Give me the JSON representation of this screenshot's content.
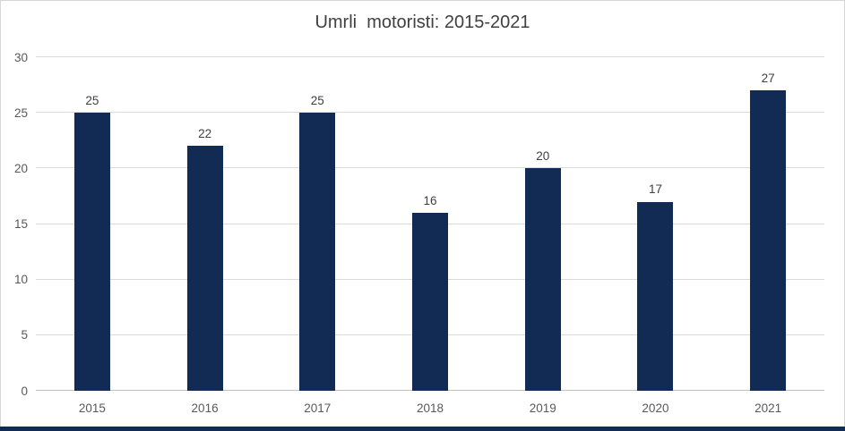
{
  "title": "Umrli  motoristi: 2015-2021",
  "colors": {
    "bar": "#112B54",
    "title_text": "#404040",
    "data_label_text": "#404040",
    "axis_label_text": "#595959",
    "gridline": "#D9D9D9",
    "axis_line": "#BFBFBF",
    "frame_border": "#D6D6D6",
    "bottom_strip": "#112B54",
    "background": "#FFFFFF"
  },
  "chart_data": {
    "type": "bar",
    "title": "Umrli  motoristi: 2015-2021",
    "categories": [
      "2015",
      "2016",
      "2017",
      "2018",
      "2019",
      "2020",
      "2021"
    ],
    "values": [
      25,
      22,
      25,
      16,
      20,
      17,
      27
    ],
    "xlabel": "",
    "ylabel": "",
    "ylim": [
      0,
      30
    ],
    "yticks": [
      0,
      5,
      10,
      15,
      20,
      25,
      30
    ],
    "grid": "horizontal-on",
    "legend": "none",
    "data_labels_shown": true,
    "bar_color": "#112B54"
  }
}
